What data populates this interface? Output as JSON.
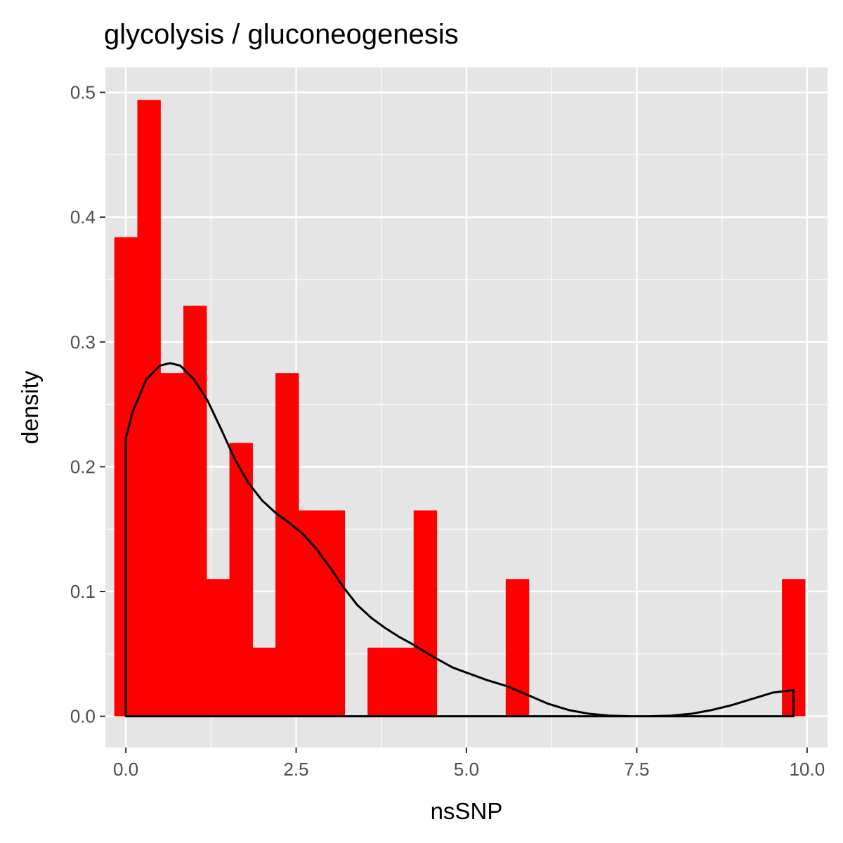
{
  "chart_data": {
    "type": "bar",
    "title": "glycolysis / gluconeogenesis",
    "xlabel": "nsSNP",
    "ylabel": "density",
    "xlim": [
      -0.3,
      10.3
    ],
    "ylim": [
      -0.025,
      0.52
    ],
    "x_ticks": [
      0,
      2.5,
      5,
      7.5,
      10
    ],
    "x_tick_labels": [
      "0.0",
      "2.5",
      "5.0",
      "7.5",
      "10.0"
    ],
    "y_ticks": [
      0,
      0.1,
      0.2,
      0.3,
      0.4,
      0.5
    ],
    "y_tick_labels": [
      "0.0",
      "0.1",
      "0.2",
      "0.3",
      "0.4",
      "0.5"
    ],
    "grid": true,
    "histogram": {
      "bin_width": 0.3379,
      "fill": "#ff0000",
      "bins": [
        {
          "center": 0.0,
          "density": 0.384
        },
        {
          "center": 0.3379,
          "density": 0.494
        },
        {
          "center": 0.6759,
          "density": 0.275
        },
        {
          "center": 1.0138,
          "density": 0.329
        },
        {
          "center": 1.3517,
          "density": 0.11
        },
        {
          "center": 1.6897,
          "density": 0.219
        },
        {
          "center": 2.0276,
          "density": 0.055
        },
        {
          "center": 2.3655,
          "density": 0.275
        },
        {
          "center": 2.7034,
          "density": 0.165
        },
        {
          "center": 3.0414,
          "density": 0.165
        },
        {
          "center": 3.7172,
          "density": 0.055
        },
        {
          "center": 4.0552,
          "density": 0.055
        },
        {
          "center": 4.3931,
          "density": 0.165
        },
        {
          "center": 5.7448,
          "density": 0.11
        },
        {
          "center": 9.7993,
          "density": 0.11
        }
      ]
    },
    "density_curve": {
      "stroke": "#000000",
      "x": [
        0,
        0.1,
        0.3,
        0.5,
        0.65,
        0.8,
        1.0,
        1.2,
        1.4,
        1.6,
        1.8,
        2.0,
        2.2,
        2.4,
        2.6,
        2.8,
        3.0,
        3.2,
        3.4,
        3.6,
        3.8,
        4.0,
        4.2,
        4.5,
        4.8,
        5.0,
        5.3,
        5.6,
        5.9,
        6.2,
        6.5,
        6.8,
        7.1,
        7.4,
        7.7,
        8.0,
        8.3,
        8.6,
        8.9,
        9.2,
        9.5,
        9.8
      ],
      "y": [
        0.223,
        0.244,
        0.27,
        0.281,
        0.283,
        0.281,
        0.27,
        0.253,
        0.23,
        0.206,
        0.187,
        0.173,
        0.163,
        0.155,
        0.146,
        0.134,
        0.119,
        0.103,
        0.089,
        0.079,
        0.071,
        0.064,
        0.058,
        0.048,
        0.039,
        0.035,
        0.029,
        0.024,
        0.017,
        0.01,
        0.005,
        0.002,
        0.0005,
        0.0,
        0.0,
        0.0005,
        0.002,
        0.005,
        0.009,
        0.014,
        0.019,
        0.021
      ]
    }
  }
}
